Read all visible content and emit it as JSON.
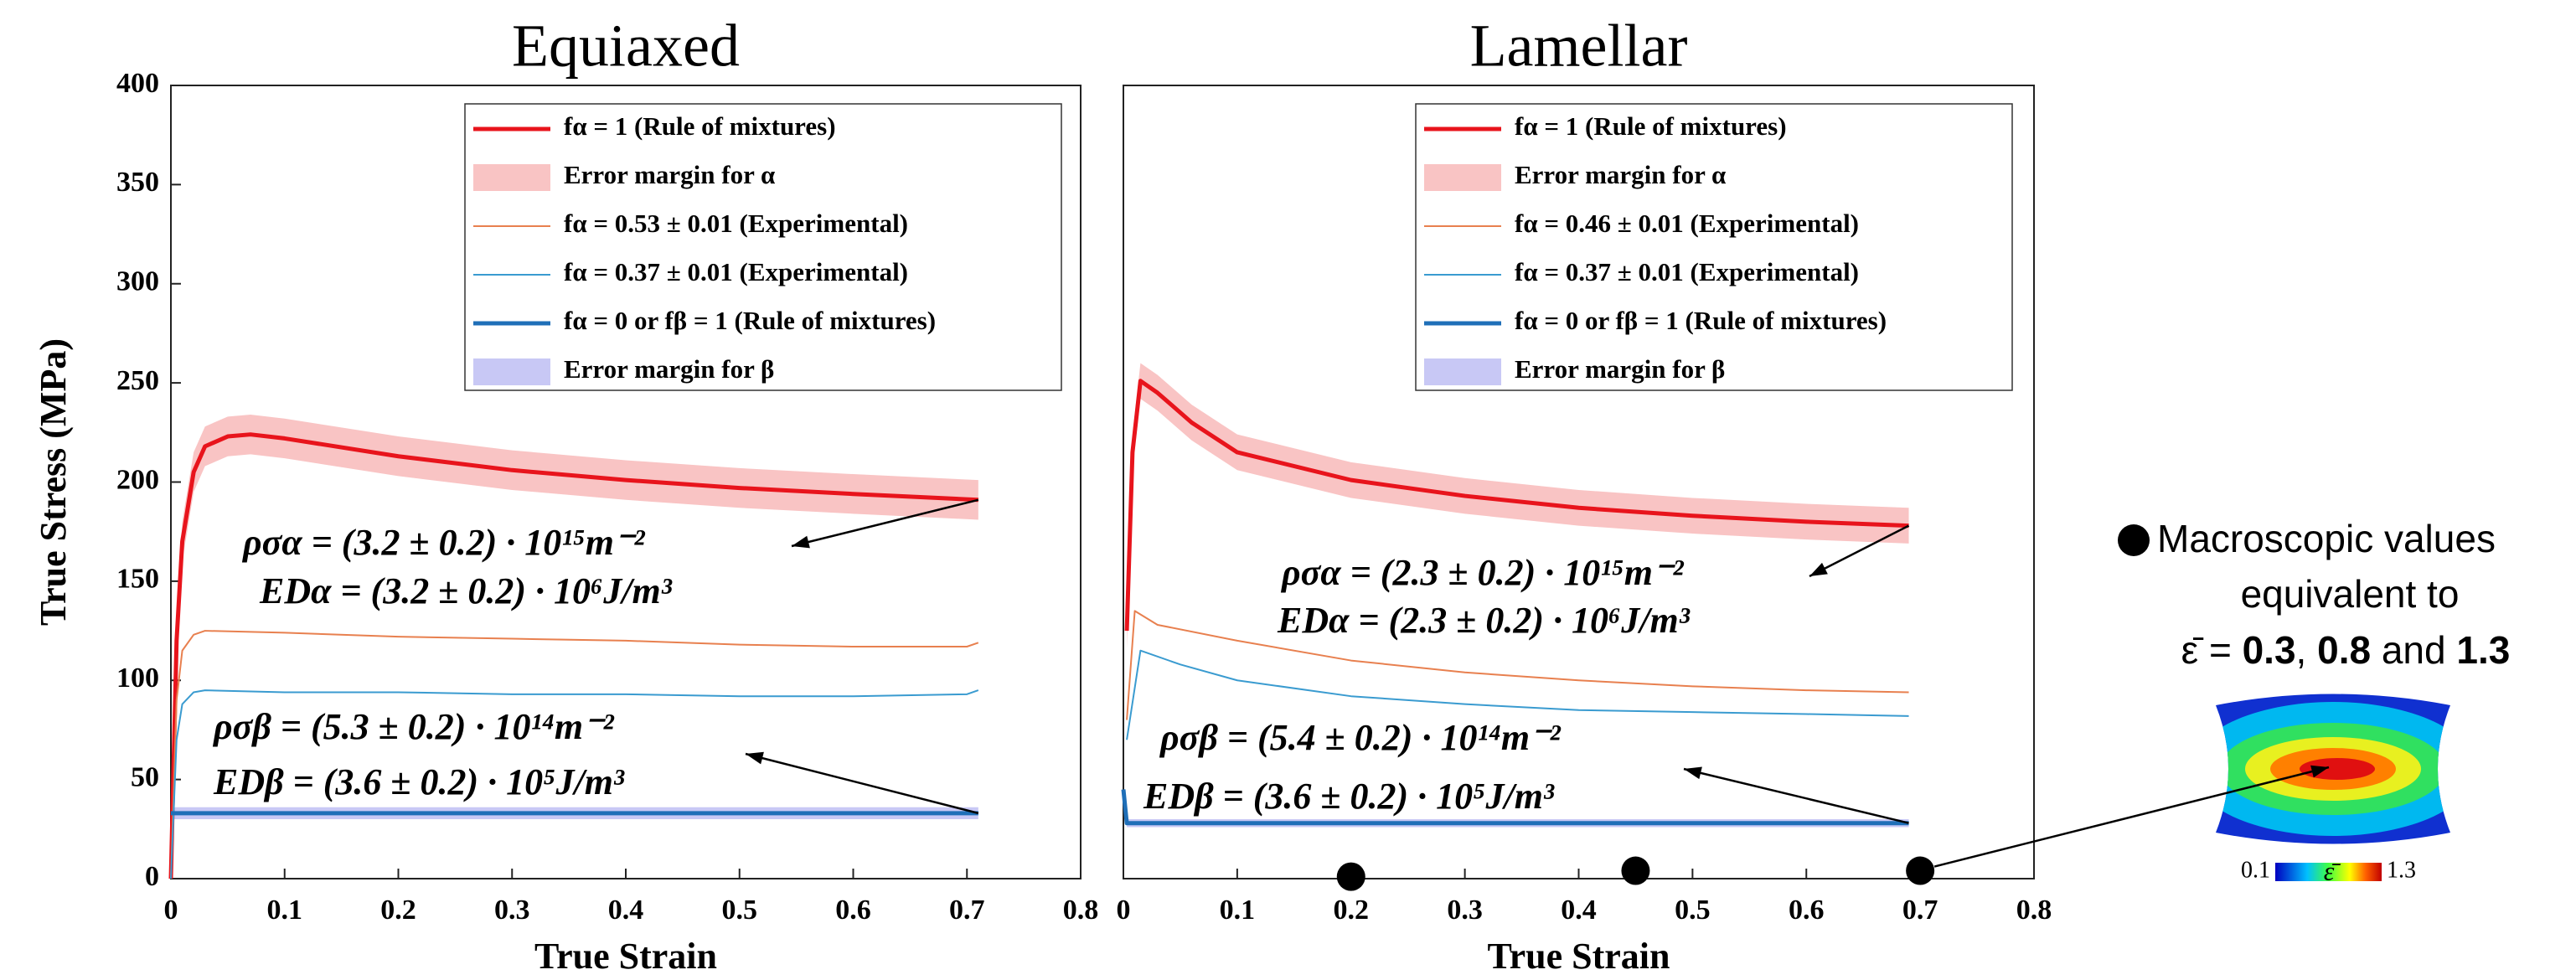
{
  "chart_data": [
    {
      "type": "line",
      "title": "Equiaxed",
      "xlabel": "True Strain",
      "ylabel": "True Stress (MPa)",
      "xlim": [
        0,
        0.8
      ],
      "ylim": [
        0,
        400
      ],
      "xticks": [
        0,
        0.1,
        0.2,
        0.3,
        0.4,
        0.5,
        0.6,
        0.7,
        0.8
      ],
      "yticks": [
        0,
        50,
        100,
        150,
        200,
        250,
        300,
        350,
        400
      ],
      "series": [
        {
          "name": "fα = 1 (Rule of mixtures)",
          "color": "#e8141c",
          "kind": "line",
          "width": 5,
          "x": [
            0,
            0.005,
            0.01,
            0.02,
            0.03,
            0.05,
            0.07,
            0.1,
            0.2,
            0.3,
            0.4,
            0.5,
            0.6,
            0.71
          ],
          "values": [
            0,
            120,
            170,
            205,
            218,
            223,
            224,
            222,
            213,
            206,
            201,
            197,
            194,
            191
          ]
        },
        {
          "name": "Error margin for α",
          "color": "#f9c4c4",
          "kind": "band",
          "x": [
            0.005,
            0.01,
            0.02,
            0.03,
            0.05,
            0.07,
            0.1,
            0.2,
            0.3,
            0.4,
            0.5,
            0.6,
            0.71
          ],
          "values": [
            120,
            170,
            205,
            218,
            223,
            224,
            222,
            213,
            206,
            201,
            197,
            194,
            191
          ],
          "error": [
            10,
            10,
            10,
            10,
            10,
            10,
            10,
            10,
            10,
            10,
            10,
            10,
            10
          ]
        },
        {
          "name": "fα = 0.53 ± 0.01 (Experimental)",
          "color": "#e8804f",
          "kind": "line",
          "width": 2,
          "x": [
            0,
            0.005,
            0.01,
            0.02,
            0.03,
            0.1,
            0.2,
            0.3,
            0.4,
            0.5,
            0.6,
            0.7,
            0.71
          ],
          "values": [
            0,
            90,
            115,
            123,
            125,
            124,
            122,
            121,
            120,
            118,
            117,
            117,
            119
          ]
        },
        {
          "name": "fα = 0.37 ± 0.01 (Experimental)",
          "color": "#3a9bd0",
          "kind": "line",
          "width": 2,
          "x": [
            0,
            0.005,
            0.01,
            0.02,
            0.03,
            0.1,
            0.2,
            0.3,
            0.4,
            0.5,
            0.6,
            0.7,
            0.71
          ],
          "values": [
            0,
            70,
            88,
            94,
            95,
            94,
            94,
            93,
            93,
            92,
            92,
            93,
            95
          ]
        },
        {
          "name": "fα = 0 or fβ = 1 (Rule of mixtures)",
          "color": "#1f6fb8",
          "kind": "line",
          "width": 5,
          "x": [
            0,
            0.71
          ],
          "values": [
            33,
            33
          ]
        },
        {
          "name": "Error margin for β",
          "color": "#c8c8f5",
          "kind": "band",
          "x": [
            0,
            0.71
          ],
          "values": [
            33,
            33
          ],
          "error": [
            3,
            3
          ]
        }
      ],
      "annotations": [
        "ρσα = (3.2 ± 0.2) · 10¹⁵m⁻²",
        "EDα = (3.2 ± 0.2) · 10⁶J/m³",
        "ρσβ = (5.3 ± 0.2) · 10¹⁴m⁻²",
        "EDβ = (3.6 ± 0.2) · 10⁵J/m³"
      ]
    },
    {
      "type": "line",
      "title": "Lamellar",
      "xlabel": "True Strain",
      "xlim": [
        0,
        0.8
      ],
      "ylim": [
        0,
        400
      ],
      "xticks": [
        0,
        0.1,
        0.2,
        0.3,
        0.4,
        0.5,
        0.6,
        0.7,
        0.8
      ],
      "series": [
        {
          "name": "fα = 1 (Rule of mixtures)",
          "color": "#e8141c",
          "kind": "line",
          "width": 5,
          "x": [
            0.003,
            0.008,
            0.015,
            0.03,
            0.06,
            0.1,
            0.2,
            0.3,
            0.4,
            0.5,
            0.6,
            0.69
          ],
          "values": [
            125,
            215,
            251,
            245,
            230,
            215,
            201,
            193,
            187,
            183,
            180,
            178
          ]
        },
        {
          "name": "Error margin for α",
          "color": "#f9c4c4",
          "kind": "band",
          "x": [
            0.003,
            0.008,
            0.015,
            0.03,
            0.06,
            0.1,
            0.2,
            0.3,
            0.4,
            0.5,
            0.6,
            0.69
          ],
          "values": [
            125,
            215,
            251,
            245,
            230,
            215,
            201,
            193,
            187,
            183,
            180,
            178
          ],
          "error": [
            9,
            9,
            9,
            9,
            9,
            9,
            9,
            9,
            9,
            9,
            9,
            9
          ]
        },
        {
          "name": "fα = 0.46 ± 0.01 (Experimental)",
          "color": "#e8804f",
          "kind": "line",
          "width": 2,
          "x": [
            0.003,
            0.01,
            0.03,
            0.1,
            0.2,
            0.3,
            0.4,
            0.5,
            0.6,
            0.69
          ],
          "values": [
            80,
            135,
            128,
            120,
            110,
            104,
            100,
            97,
            95,
            94
          ]
        },
        {
          "name": "fα = 0.37 ± 0.01 (Experimental)",
          "color": "#3a9bd0",
          "kind": "line",
          "width": 2,
          "x": [
            0.003,
            0.015,
            0.05,
            0.1,
            0.2,
            0.3,
            0.4,
            0.5,
            0.6,
            0.69
          ],
          "values": [
            70,
            115,
            108,
            100,
            92,
            88,
            85,
            84,
            83,
            82
          ]
        },
        {
          "name": "fα = 0 or fβ = 1 (Rule of mixtures)",
          "color": "#1f6fb8",
          "kind": "line",
          "width": 5,
          "x": [
            0,
            0.003,
            0.69
          ],
          "values": [
            45,
            28,
            28
          ]
        },
        {
          "name": "Error margin for β",
          "color": "#c8c8f5",
          "kind": "band",
          "x": [
            0.003,
            0.69
          ],
          "values": [
            28,
            28
          ],
          "error": [
            2,
            2
          ]
        }
      ],
      "markers": {
        "color": "#000000",
        "x": [
          0.2,
          0.45,
          0.7
        ],
        "values": [
          1,
          4,
          4
        ]
      },
      "annotations": [
        "ρσα = (2.3 ± 0.2) · 10¹⁵m⁻²",
        "EDα = (2.3 ± 0.2) · 10⁶J/m³",
        "ρσβ = (5.4 ± 0.2) · 10¹⁴m⁻²",
        "EDβ = (3.6 ± 0.2) · 10⁵J/m³"
      ]
    }
  ],
  "side_panel": {
    "lines": [
      "Macroscopic values",
      "equivalent to"
    ],
    "formula": [
      "ε̄ = ",
      "0.3",
      ", ",
      "0.8",
      " and ",
      "1.3"
    ],
    "colorbar": [
      "0.1",
      "ε̄",
      "1.3"
    ]
  }
}
